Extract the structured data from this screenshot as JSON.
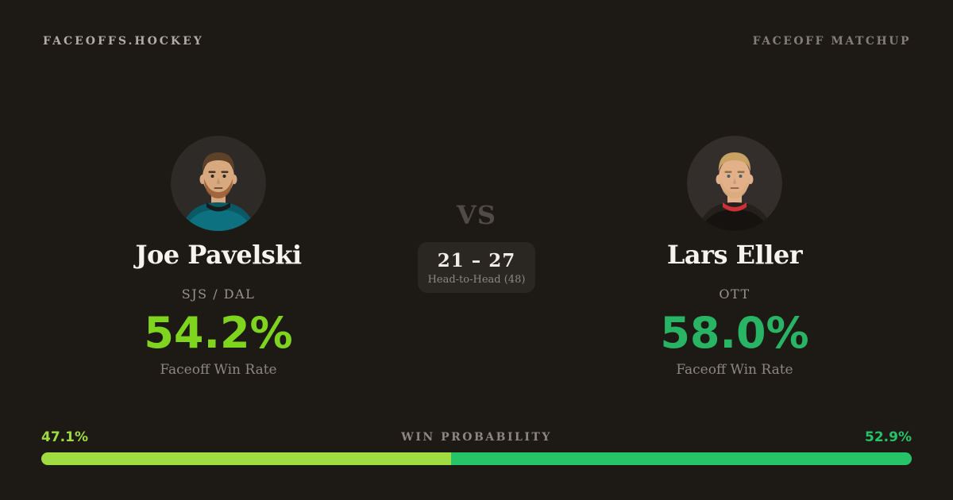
{
  "theme": {
    "background": "#1d1915",
    "text": "#f6f2ec",
    "muted": "#8d8780"
  },
  "header": {
    "brand": "FACEOFFS.HOCKEY",
    "page_label": "FACEOFF MATCHUP"
  },
  "matchup": {
    "vs_label": "VS",
    "head_to_head_score": "21 – 27",
    "head_to_head_label": "Head-to-Head (48)"
  },
  "players": [
    {
      "name": "Joe Pavelski",
      "team": "SJS / DAL",
      "win_rate": "54.2%",
      "win_rate_label": "Faceoff Win Rate",
      "accent": "#7fd41f",
      "avatar": {
        "bg": "#2e2a27",
        "skin": "#d8a87e",
        "hair": "#5d4129",
        "beard": "#9a5e36",
        "jersey": "#0d7180",
        "jersey_accent": "#0a5a66",
        "collar": "#171b1d"
      }
    },
    {
      "name": "Lars Eller",
      "team": "OTT",
      "win_rate": "58.0%",
      "win_rate_label": "Faceoff Win Rate",
      "accent": "#28b464",
      "avatar": {
        "bg": "#332e2b",
        "skin": "#e2b189",
        "hair": "#c8a262",
        "beard": "#d9ac7e",
        "jersey": "#16120f",
        "jersey_accent": "#24201c",
        "collar": "#cc3137"
      }
    }
  ],
  "win_probability": {
    "label": "WIN PROBABILITY",
    "left_percent": "47.1%",
    "right_percent": "52.9%",
    "left_value": 47.1,
    "right_value": 52.9,
    "left_color": "#9edc42",
    "right_color": "#27c367"
  }
}
